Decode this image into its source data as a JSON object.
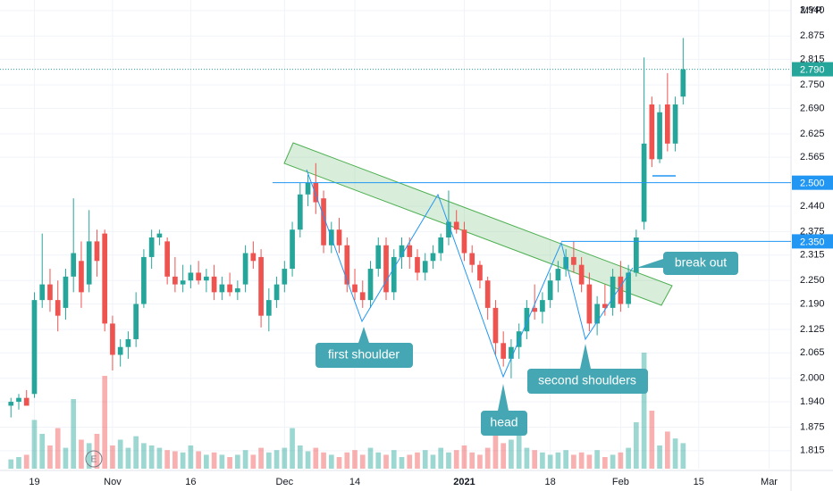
{
  "chart_data": {
    "type": "candlestick",
    "currency": "MYR",
    "up_color": "#26a69a",
    "down_color": "#ef5350",
    "xlim": [
      -1.4,
      99.8
    ],
    "xticks": [
      {
        "value": 3,
        "label": "19"
      },
      {
        "value": 13,
        "label": "Nov"
      },
      {
        "value": 23,
        "label": "16"
      },
      {
        "value": 35,
        "label": "Dec"
      },
      {
        "value": 44,
        "label": "14"
      },
      {
        "value": 58,
        "label": "2021"
      },
      {
        "value": 69,
        "label": "18"
      },
      {
        "value": 78,
        "label": "Feb"
      },
      {
        "value": 88,
        "label": "15"
      },
      {
        "value": 97,
        "label": "Mar"
      }
    ],
    "ylim": [
      1.769,
      2.967
    ],
    "yticks": [
      {
        "value": 2.94,
        "label": "2.940"
      },
      {
        "value": 2.875,
        "label": "2.875"
      },
      {
        "value": 2.815,
        "label": "2.815"
      },
      {
        "value": 2.75,
        "label": "2.750"
      },
      {
        "value": 2.69,
        "label": "2.690"
      },
      {
        "value": 2.625,
        "label": "2.625"
      },
      {
        "value": 2.565,
        "label": "2.565"
      },
      {
        "value": 2.44,
        "label": "2.440"
      },
      {
        "value": 2.375,
        "label": "2.375"
      },
      {
        "value": 2.315,
        "label": "2.315"
      },
      {
        "value": 2.25,
        "label": "2.250"
      },
      {
        "value": 2.19,
        "label": "2.190"
      },
      {
        "value": 2.125,
        "label": "2.125"
      },
      {
        "value": 2.065,
        "label": "2.065"
      },
      {
        "value": 2.0,
        "label": "2.000"
      },
      {
        "value": 1.94,
        "label": "1.940"
      },
      {
        "value": 1.875,
        "label": "1.875"
      },
      {
        "value": 1.815,
        "label": "1.815"
      }
    ],
    "hlines": [
      {
        "value": 2.5,
        "label": "2.500"
      },
      {
        "value": 2.35,
        "label": "2.350"
      }
    ],
    "last_price": {
      "value": 2.79,
      "label": "2.790"
    },
    "open": [
      1.93,
      1.94,
      1.95,
      1.96,
      2.2,
      2.24,
      2.2,
      2.18,
      2.26,
      2.3,
      2.24,
      2.35,
      2.37,
      2.14,
      2.06,
      2.08,
      2.1,
      2.19,
      2.31,
      2.36,
      2.35,
      2.26,
      2.24,
      2.25,
      2.27,
      2.25,
      2.26,
      2.22,
      2.24,
      2.22,
      2.24,
      2.32,
      2.31,
      2.16,
      2.2,
      2.24,
      2.28,
      2.38,
      2.47,
      2.5,
      2.46,
      2.34,
      2.38,
      2.34,
      2.24,
      2.22,
      2.2,
      2.28,
      2.34,
      2.22,
      2.31,
      2.34,
      2.31,
      2.27,
      2.3,
      2.32,
      2.36,
      2.4,
      2.38,
      2.32,
      2.29,
      2.25,
      2.18,
      2.09,
      2.05,
      2.08,
      2.12,
      2.18,
      2.17,
      2.2,
      2.25,
      2.28,
      2.31,
      2.29,
      2.24,
      2.14,
      2.19,
      2.18,
      2.26,
      2.19,
      2.27,
      2.4,
      2.7,
      2.56,
      2.7,
      2.6,
      2.72
    ],
    "high": [
      1.95,
      1.96,
      1.97,
      2.22,
      2.37,
      2.28,
      2.25,
      2.28,
      2.46,
      2.35,
      2.43,
      2.38,
      2.38,
      2.16,
      2.1,
      2.12,
      2.22,
      2.33,
      2.38,
      2.38,
      2.36,
      2.31,
      2.29,
      2.29,
      2.3,
      2.28,
      2.29,
      2.26,
      2.27,
      2.25,
      2.34,
      2.35,
      2.33,
      2.23,
      2.26,
      2.3,
      2.4,
      2.5,
      2.52,
      2.55,
      2.48,
      2.4,
      2.41,
      2.36,
      2.28,
      2.25,
      2.3,
      2.36,
      2.36,
      2.33,
      2.36,
      2.36,
      2.33,
      2.32,
      2.34,
      2.37,
      2.48,
      2.43,
      2.4,
      2.34,
      2.3,
      2.26,
      2.2,
      2.12,
      2.1,
      2.14,
      2.2,
      2.24,
      2.22,
      2.27,
      2.3,
      2.33,
      2.35,
      2.31,
      2.27,
      2.21,
      2.24,
      2.28,
      2.3,
      2.29,
      2.38,
      2.82,
      2.72,
      2.7,
      2.78,
      2.72,
      2.87
    ],
    "low": [
      1.9,
      1.92,
      1.93,
      1.95,
      2.18,
      2.17,
      2.12,
      2.15,
      2.22,
      2.18,
      2.22,
      2.26,
      2.12,
      2.02,
      2.03,
      2.05,
      2.08,
      2.18,
      2.28,
      2.34,
      2.24,
      2.22,
      2.22,
      2.23,
      2.24,
      2.22,
      2.2,
      2.2,
      2.21,
      2.2,
      2.22,
      2.28,
      2.13,
      2.12,
      2.18,
      2.22,
      2.26,
      2.36,
      2.44,
      2.42,
      2.32,
      2.32,
      2.32,
      2.22,
      2.2,
      2.18,
      2.18,
      2.26,
      2.2,
      2.2,
      2.28,
      2.28,
      2.25,
      2.25,
      2.28,
      2.3,
      2.34,
      2.37,
      2.3,
      2.27,
      2.23,
      2.15,
      2.06,
      2.03,
      2.0,
      2.05,
      2.1,
      2.15,
      2.14,
      2.18,
      2.22,
      2.26,
      2.27,
      2.22,
      2.12,
      2.11,
      2.16,
      2.16,
      2.17,
      2.18,
      2.26,
      2.38,
      2.54,
      2.55,
      2.58,
      2.58,
      2.7
    ],
    "close": [
      1.94,
      1.95,
      1.93,
      2.2,
      2.24,
      2.2,
      2.16,
      2.26,
      2.32,
      2.22,
      2.35,
      2.3,
      2.14,
      2.06,
      2.08,
      2.1,
      2.19,
      2.31,
      2.36,
      2.37,
      2.26,
      2.24,
      2.25,
      2.27,
      2.25,
      2.26,
      2.22,
      2.24,
      2.22,
      2.23,
      2.32,
      2.3,
      2.16,
      2.2,
      2.24,
      2.28,
      2.38,
      2.47,
      2.5,
      2.45,
      2.34,
      2.38,
      2.34,
      2.24,
      2.22,
      2.2,
      2.28,
      2.34,
      2.22,
      2.31,
      2.34,
      2.31,
      2.27,
      2.3,
      2.32,
      2.36,
      2.4,
      2.38,
      2.32,
      2.29,
      2.25,
      2.18,
      2.09,
      2.05,
      2.08,
      2.12,
      2.18,
      2.17,
      2.2,
      2.25,
      2.28,
      2.31,
      2.29,
      2.24,
      2.14,
      2.19,
      2.18,
      2.26,
      2.19,
      2.27,
      2.36,
      2.6,
      2.56,
      2.68,
      2.6,
      2.7,
      2.79
    ],
    "volume": [
      8,
      10,
      12,
      42,
      30,
      20,
      35,
      18,
      60,
      25,
      22,
      30,
      80,
      20,
      25,
      18,
      28,
      22,
      20,
      18,
      16,
      15,
      14,
      20,
      15,
      12,
      14,
      12,
      10,
      12,
      16,
      12,
      18,
      14,
      16,
      18,
      35,
      20,
      15,
      18,
      14,
      12,
      10,
      14,
      16,
      12,
      18,
      14,
      12,
      16,
      10,
      12,
      14,
      16,
      12,
      18,
      14,
      16,
      20,
      14,
      12,
      18,
      30,
      22,
      25,
      35,
      18,
      16,
      14,
      12,
      14,
      16,
      12,
      14,
      12,
      16,
      10,
      12,
      14,
      18,
      40,
      100,
      50,
      20,
      32,
      26,
      22
    ],
    "marker_text": "E",
    "annotations": {
      "first": "first shoulder",
      "head": "head",
      "second": "second shoulders",
      "breakout": "break out"
    }
  }
}
